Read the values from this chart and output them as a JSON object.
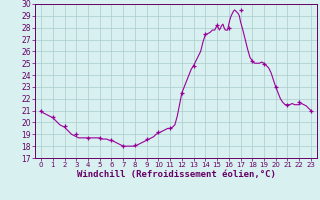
{
  "x_markers": [
    0,
    1,
    2,
    3,
    4,
    5,
    6,
    7,
    8,
    9,
    10,
    11,
    12,
    13,
    14,
    15,
    16,
    17,
    18,
    19,
    20,
    21,
    22,
    23
  ],
  "y_markers": [
    21.0,
    20.5,
    19.7,
    19.0,
    18.7,
    18.7,
    18.5,
    18.0,
    18.1,
    18.6,
    19.2,
    19.5,
    22.5,
    24.8,
    27.5,
    28.2,
    28.0,
    29.5,
    25.2,
    24.9,
    23.0,
    21.5,
    21.7,
    21.0
  ],
  "x_fine": [
    0.0,
    0.2,
    0.4,
    0.6,
    0.8,
    1.0,
    1.2,
    1.4,
    1.6,
    1.8,
    2.0,
    2.2,
    2.4,
    2.6,
    2.8,
    3.0,
    3.2,
    3.4,
    3.6,
    3.8,
    4.0,
    4.2,
    4.4,
    4.6,
    4.8,
    5.0,
    5.2,
    5.4,
    5.6,
    5.8,
    6.0,
    6.2,
    6.4,
    6.6,
    6.8,
    7.0,
    7.2,
    7.4,
    7.6,
    7.8,
    8.0,
    8.2,
    8.4,
    8.6,
    8.8,
    9.0,
    9.2,
    9.4,
    9.6,
    9.8,
    10.0,
    10.2,
    10.4,
    10.6,
    10.8,
    11.0,
    11.2,
    11.4,
    11.6,
    11.8,
    12.0,
    12.2,
    12.4,
    12.6,
    12.8,
    13.0,
    13.2,
    13.4,
    13.6,
    13.8,
    14.0,
    14.2,
    14.4,
    14.6,
    14.8,
    15.0,
    15.1,
    15.2,
    15.3,
    15.4,
    15.5,
    15.6,
    15.7,
    15.8,
    15.9,
    16.0,
    16.1,
    16.2,
    16.3,
    16.4,
    16.5,
    16.6,
    16.7,
    16.8,
    16.9,
    17.0,
    17.2,
    17.4,
    17.6,
    17.8,
    18.0,
    18.2,
    18.4,
    18.6,
    18.8,
    19.0,
    19.2,
    19.4,
    19.6,
    19.8,
    20.0,
    20.2,
    20.4,
    20.6,
    20.8,
    21.0,
    21.2,
    21.4,
    21.6,
    21.8,
    22.0,
    22.2,
    22.4,
    22.6,
    22.8,
    23.0
  ],
  "y_fine": [
    21.0,
    20.8,
    20.7,
    20.6,
    20.5,
    20.4,
    20.2,
    20.0,
    19.8,
    19.7,
    19.6,
    19.4,
    19.2,
    19.0,
    18.9,
    18.8,
    18.7,
    18.7,
    18.7,
    18.7,
    18.7,
    18.7,
    18.7,
    18.7,
    18.7,
    18.7,
    18.6,
    18.6,
    18.6,
    18.5,
    18.5,
    18.4,
    18.3,
    18.2,
    18.1,
    18.0,
    18.0,
    18.0,
    18.0,
    18.0,
    18.0,
    18.1,
    18.2,
    18.3,
    18.4,
    18.5,
    18.6,
    18.7,
    18.8,
    19.0,
    19.1,
    19.2,
    19.3,
    19.4,
    19.5,
    19.5,
    19.6,
    19.8,
    20.5,
    21.5,
    22.5,
    23.0,
    23.5,
    24.0,
    24.5,
    24.8,
    25.2,
    25.6,
    26.0,
    26.8,
    27.4,
    27.5,
    27.6,
    27.8,
    27.8,
    28.2,
    28.0,
    27.8,
    28.0,
    28.2,
    28.3,
    28.0,
    27.8,
    27.8,
    27.8,
    28.3,
    28.7,
    29.0,
    29.2,
    29.4,
    29.5,
    29.4,
    29.3,
    29.2,
    29.0,
    28.5,
    27.8,
    27.0,
    26.2,
    25.5,
    25.2,
    25.0,
    25.0,
    25.0,
    25.1,
    25.0,
    24.8,
    24.6,
    24.2,
    23.6,
    23.0,
    22.5,
    22.0,
    21.7,
    21.5,
    21.5,
    21.5,
    21.6,
    21.5,
    21.5,
    21.5,
    21.6,
    21.5,
    21.4,
    21.2,
    21.0
  ],
  "line_color": "#990099",
  "marker_color": "#990099",
  "bg_color": "#d8f0f0",
  "grid_color": "#aacccc",
  "axis_color": "#660066",
  "xlabel": "Windchill (Refroidissement éolien,°C)",
  "ylim": [
    17,
    30
  ],
  "xlim_min": -0.5,
  "xlim_max": 23.5,
  "yticks": [
    17,
    18,
    19,
    20,
    21,
    22,
    23,
    24,
    25,
    26,
    27,
    28,
    29,
    30
  ],
  "xticks": [
    0,
    1,
    2,
    3,
    4,
    5,
    6,
    7,
    8,
    9,
    10,
    11,
    12,
    13,
    14,
    15,
    16,
    17,
    18,
    19,
    20,
    21,
    22,
    23
  ]
}
